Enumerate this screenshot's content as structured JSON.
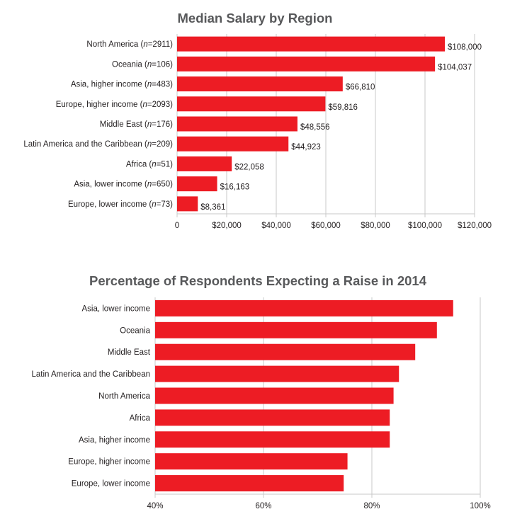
{
  "chart_data": [
    {
      "type": "bar",
      "orientation": "horizontal",
      "title": "Median Salary by Region",
      "categories": [
        "North America (n=2911)",
        "Oceania (n=106)",
        "Asia, higher income (n=483)",
        "Europe, higher income (n=2093)",
        "Middle East (n=176)",
        "Latin America and the Caribbean (n=209)",
        "Africa (n=51)",
        "Asia, lower income (n=650)",
        "Europe, lower income (n=73)"
      ],
      "label_parts": [
        {
          "pre": "North America (",
          "n": "n",
          "post": "=2911)"
        },
        {
          "pre": "Oceania (",
          "n": "n",
          "post": "=106)"
        },
        {
          "pre": "Asia, higher income (",
          "n": "n",
          "post": "=483)"
        },
        {
          "pre": "Europe, higher income (",
          "n": "n",
          "post": "=2093)"
        },
        {
          "pre": "Middle East (",
          "n": "n",
          "post": "=176)"
        },
        {
          "pre": "Latin America and the Caribbean (",
          "n": "n",
          "post": "=209)"
        },
        {
          "pre": "Africa (",
          "n": "n",
          "post": "=51)"
        },
        {
          "pre": "Asia, lower income (",
          "n": "n",
          "post": "=650)"
        },
        {
          "pre": "Europe, lower income (",
          "n": "n",
          "post": "=73)"
        }
      ],
      "values": [
        108000,
        104037,
        66810,
        59816,
        48556,
        44923,
        22058,
        16163,
        8361
      ],
      "value_labels": [
        "$108,000",
        "$104,037",
        "$66,810",
        "$59,816",
        "$48,556",
        "$44,923",
        "$22,058",
        "$16,163",
        "$8,361"
      ],
      "xlim": [
        0,
        120000
      ],
      "xticks": [
        0,
        20000,
        40000,
        60000,
        80000,
        100000,
        120000
      ],
      "xtick_labels": [
        "0",
        "$20,000",
        "$40,000",
        "$60,000",
        "$80,000",
        "$100,000",
        "$120,000"
      ],
      "xlabel": "",
      "ylabel": "",
      "grid": true,
      "color": "#ed1c24"
    },
    {
      "type": "bar",
      "orientation": "horizontal",
      "title": "Percentage of Respondents Expecting a Raise in 2014",
      "categories": [
        "Asia, lower income",
        "Oceania",
        "Middle East",
        "Latin America and the Caribbean",
        "North America",
        "Africa",
        "Asia, higher income",
        "Europe, higher income",
        "Europe, lower income"
      ],
      "values": [
        95,
        92,
        88,
        85,
        84,
        83.3,
        83.3,
        75.5,
        74.8
      ],
      "xlim": [
        40,
        100
      ],
      "xticks": [
        40,
        60,
        80,
        100
      ],
      "xtick_labels": [
        "40%",
        "60%",
        "80%",
        "100%"
      ],
      "xlabel": "",
      "ylabel": "",
      "grid": true,
      "color": "#ed1c24"
    }
  ]
}
